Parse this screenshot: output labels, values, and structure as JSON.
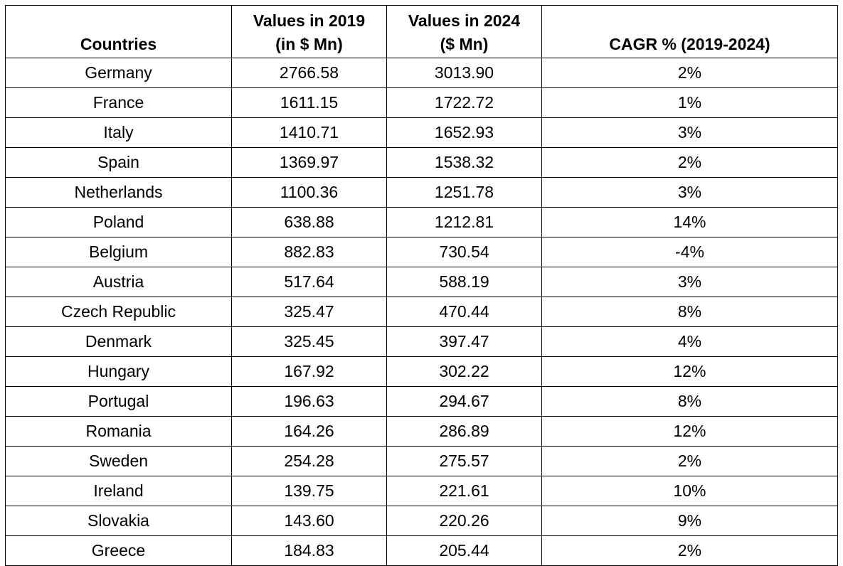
{
  "table": {
    "headers": {
      "country": "Countries",
      "values_2019_line1": "Values in 2019",
      "values_2019_line2": "(in $ Mn)",
      "values_2024_line1": "Values in 2024",
      "values_2024_line2": "($ Mn)",
      "cagr": "CAGR % (2019-2024)"
    },
    "rows": [
      {
        "country": "Germany",
        "v2019": "2766.58",
        "v2024": "3013.90",
        "cagr": "2%"
      },
      {
        "country": "France",
        "v2019": "1611.15",
        "v2024": "1722.72",
        "cagr": "1%"
      },
      {
        "country": "Italy",
        "v2019": "1410.71",
        "v2024": "1652.93",
        "cagr": "3%"
      },
      {
        "country": "Spain",
        "v2019": "1369.97",
        "v2024": "1538.32",
        "cagr": "2%"
      },
      {
        "country": "Netherlands",
        "v2019": "1100.36",
        "v2024": "1251.78",
        "cagr": "3%"
      },
      {
        "country": "Poland",
        "v2019": "638.88",
        "v2024": "1212.81",
        "cagr": "14%"
      },
      {
        "country": "Belgium",
        "v2019": "882.83",
        "v2024": "730.54",
        "cagr": "-4%"
      },
      {
        "country": "Austria",
        "v2019": "517.64",
        "v2024": "588.19",
        "cagr": "3%"
      },
      {
        "country": "Czech Republic",
        "v2019": "325.47",
        "v2024": "470.44",
        "cagr": "8%"
      },
      {
        "country": "Denmark",
        "v2019": "325.45",
        "v2024": "397.47",
        "cagr": "4%"
      },
      {
        "country": "Hungary",
        "v2019": "167.92",
        "v2024": "302.22",
        "cagr": "12%"
      },
      {
        "country": "Portugal",
        "v2019": "196.63",
        "v2024": "294.67",
        "cagr": "8%"
      },
      {
        "country": "Romania",
        "v2019": "164.26",
        "v2024": "286.89",
        "cagr": "12%"
      },
      {
        "country": "Sweden",
        "v2019": "254.28",
        "v2024": "275.57",
        "cagr": "2%"
      },
      {
        "country": "Ireland",
        "v2019": "139.75",
        "v2024": "221.61",
        "cagr": "10%"
      },
      {
        "country": "Slovakia",
        "v2019": "143.60",
        "v2024": "220.26",
        "cagr": "9%"
      },
      {
        "country": "Greece",
        "v2019": "184.83",
        "v2024": "205.44",
        "cagr": "2%"
      }
    ]
  }
}
